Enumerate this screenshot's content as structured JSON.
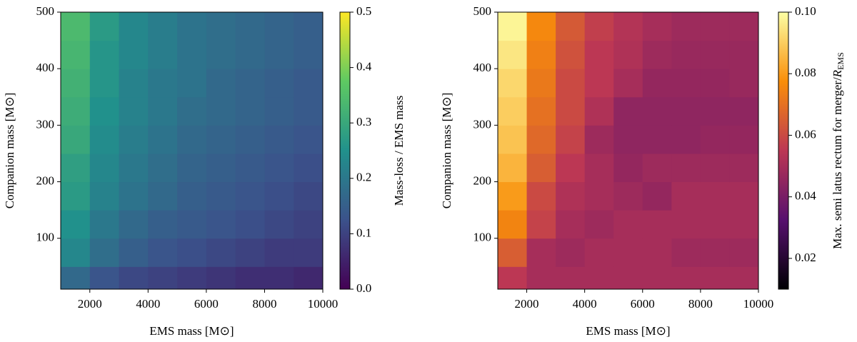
{
  "chart_data": [
    {
      "type": "heatmap",
      "xlabel": "EMS mass [M⊙]",
      "ylabel": "Companion mass [M⊙]",
      "colorbar_label": "Mass-loss / EMS mass",
      "colormap": "viridis",
      "xlim": [
        1000,
        10000
      ],
      "ylim": [
        10,
        500
      ],
      "xticks": [
        2000,
        4000,
        6000,
        8000,
        10000
      ],
      "yticks": [
        100,
        200,
        300,
        400,
        500
      ],
      "clim": [
        0,
        0.5
      ],
      "cticks": [
        {
          "value": 0,
          "label": "0.0"
        },
        0.1,
        0.2,
        0.3,
        0.4,
        0.5
      ],
      "x_edges": [
        1000,
        2000,
        3000,
        4000,
        5000,
        6000,
        7000,
        8000,
        9000,
        10000
      ],
      "y_edges": [
        10,
        50,
        100,
        150,
        200,
        250,
        300,
        350,
        400,
        450,
        500
      ],
      "z": [
        [
          0.17,
          0.13,
          0.11,
          0.1,
          0.09,
          0.08,
          0.07,
          0.07,
          0.06
        ],
        [
          0.23,
          0.18,
          0.15,
          0.13,
          0.12,
          0.11,
          0.1,
          0.09,
          0.09
        ],
        [
          0.25,
          0.2,
          0.17,
          0.15,
          0.14,
          0.13,
          0.12,
          0.11,
          0.1
        ],
        [
          0.27,
          0.22,
          0.19,
          0.17,
          0.15,
          0.14,
          0.13,
          0.12,
          0.11
        ],
        [
          0.28,
          0.23,
          0.2,
          0.18,
          0.16,
          0.15,
          0.14,
          0.13,
          0.12
        ],
        [
          0.3,
          0.24,
          0.21,
          0.19,
          0.17,
          0.16,
          0.15,
          0.14,
          0.13
        ],
        [
          0.31,
          0.25,
          0.22,
          0.2,
          0.18,
          0.17,
          0.16,
          0.15,
          0.14
        ],
        [
          0.32,
          0.26,
          0.22,
          0.2,
          0.19,
          0.17,
          0.16,
          0.15,
          0.14
        ],
        [
          0.33,
          0.26,
          0.23,
          0.21,
          0.19,
          0.18,
          0.17,
          0.16,
          0.15
        ],
        [
          0.34,
          0.27,
          0.23,
          0.21,
          0.19,
          0.18,
          0.17,
          0.16,
          0.15
        ]
      ]
    },
    {
      "type": "heatmap",
      "xlabel": "EMS mass [M⊙]",
      "ylabel": "Companion mass [M⊙]",
      "colorbar_label": "Max. semi latus rectum for merger/",
      "colorbar_label_symbol": "R",
      "colorbar_label_sub": "EMS",
      "colormap": "inferno",
      "xlim": [
        1000,
        10000
      ],
      "ylim": [
        10,
        500
      ],
      "xticks": [
        2000,
        4000,
        6000,
        8000,
        10000
      ],
      "yticks": [
        100,
        200,
        300,
        400,
        500
      ],
      "clim": [
        0.01,
        0.1
      ],
      "cticks": [
        0.02,
        0.04,
        0.06,
        0.08,
        {
          "value": 0.1,
          "label": "0.10"
        }
      ],
      "x_edges": [
        1000,
        2000,
        3000,
        4000,
        5000,
        6000,
        7000,
        8000,
        9000,
        10000
      ],
      "y_edges": [
        10,
        50,
        100,
        150,
        200,
        250,
        300,
        350,
        400,
        450,
        500
      ],
      "z": [
        [
          0.055,
          0.05,
          0.05,
          0.05,
          0.05,
          0.05,
          0.05,
          0.05,
          0.05
        ],
        [
          0.065,
          0.05,
          0.048,
          0.05,
          0.05,
          0.05,
          0.048,
          0.048,
          0.048
        ],
        [
          0.075,
          0.058,
          0.05,
          0.048,
          0.05,
          0.05,
          0.05,
          0.05,
          0.05
        ],
        [
          0.08,
          0.06,
          0.052,
          0.05,
          0.048,
          0.046,
          0.05,
          0.05,
          0.05
        ],
        [
          0.085,
          0.065,
          0.055,
          0.05,
          0.046,
          0.048,
          0.048,
          0.048,
          0.048
        ],
        [
          0.088,
          0.068,
          0.058,
          0.048,
          0.045,
          0.045,
          0.045,
          0.046,
          0.046
        ],
        [
          0.09,
          0.07,
          0.06,
          0.052,
          0.045,
          0.045,
          0.045,
          0.045,
          0.045
        ],
        [
          0.092,
          0.072,
          0.06,
          0.055,
          0.05,
          0.046,
          0.046,
          0.046,
          0.047
        ],
        [
          0.095,
          0.074,
          0.062,
          0.055,
          0.052,
          0.048,
          0.047,
          0.047,
          0.047
        ],
        [
          0.098,
          0.076,
          0.064,
          0.057,
          0.053,
          0.05,
          0.048,
          0.048,
          0.048
        ]
      ]
    }
  ]
}
